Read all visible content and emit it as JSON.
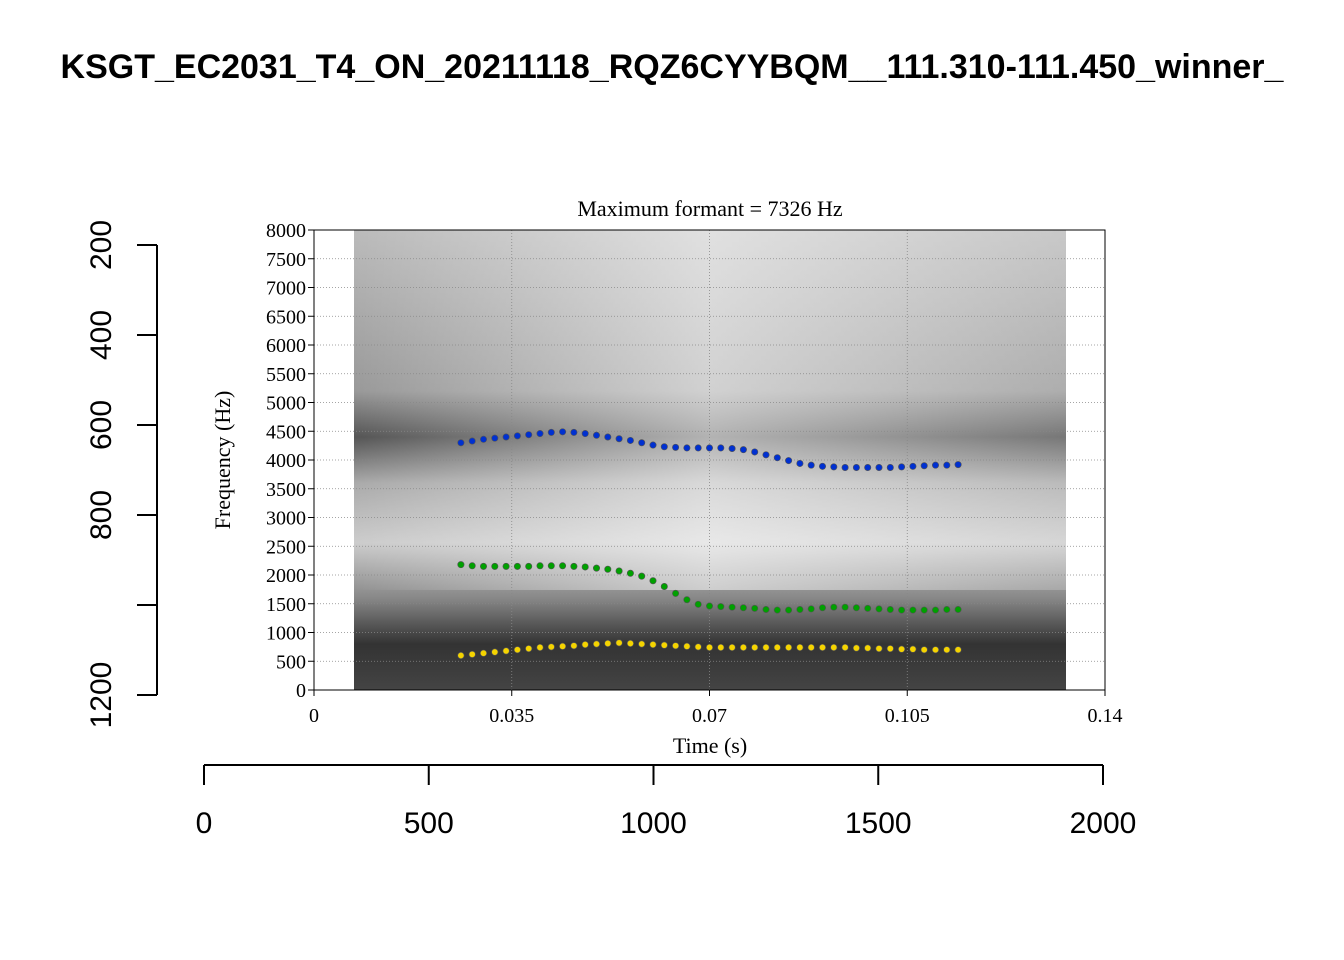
{
  "chart_data": [
    {
      "type": "axes",
      "title": "KSGT_EC2031_T4_ON_20211118_RQZ6CYYBQM__111.310-111.450_winner_",
      "xlim": [
        0,
        2000
      ],
      "xticks": [
        0,
        500,
        1000,
        1500,
        2000
      ],
      "ylim": [
        200,
        1200
      ],
      "y_inverted": true,
      "yticks": [
        200,
        400,
        600,
        800,
        {
          "value": 1000,
          "label": null
        },
        1200
      ]
    },
    {
      "type": "scatter",
      "title": "Maximum formant = 7326 Hz",
      "x_label": "Time (s)",
      "y_label": "Frequency (Hz)",
      "xlim": [
        0,
        0.14
      ],
      "xticks": [
        0,
        0.035,
        0.07,
        0.105,
        0.14
      ],
      "ylim": [
        0,
        8000
      ],
      "yticks": [
        0,
        500,
        1000,
        1500,
        2000,
        2500,
        3000,
        3500,
        4000,
        4500,
        5000,
        5500,
        6000,
        6500,
        7000,
        7500,
        8000
      ],
      "grid": true,
      "x": [
        0.026,
        0.028,
        0.03,
        0.032,
        0.034,
        0.036,
        0.038,
        0.04,
        0.042,
        0.044,
        0.046,
        0.048,
        0.05,
        0.052,
        0.054,
        0.056,
        0.058,
        0.06,
        0.062,
        0.064,
        0.066,
        0.068,
        0.07,
        0.072,
        0.074,
        0.076,
        0.078,
        0.08,
        0.082,
        0.084,
        0.086,
        0.088,
        0.09,
        0.092,
        0.094,
        0.096,
        0.098,
        0.1,
        0.102,
        0.104,
        0.106,
        0.108,
        0.11,
        0.112,
        0.114
      ],
      "series": [
        {
          "color": "#f5d400",
          "values": [
            600,
            620,
            640,
            660,
            680,
            700,
            720,
            740,
            750,
            760,
            770,
            790,
            800,
            810,
            820,
            810,
            800,
            790,
            780,
            770,
            760,
            750,
            740,
            740,
            740,
            740,
            740,
            740,
            740,
            740,
            740,
            740,
            740,
            740,
            740,
            730,
            730,
            720,
            720,
            710,
            710,
            700,
            700,
            700,
            700
          ]
        },
        {
          "color": "#00a000",
          "values": [
            2180,
            2160,
            2150,
            2150,
            2150,
            2150,
            2150,
            2160,
            2160,
            2160,
            2150,
            2140,
            2120,
            2100,
            2070,
            2030,
            1980,
            1900,
            1800,
            1680,
            1570,
            1490,
            1460,
            1450,
            1440,
            1430,
            1420,
            1400,
            1390,
            1390,
            1400,
            1410,
            1430,
            1440,
            1440,
            1430,
            1420,
            1410,
            1400,
            1390,
            1390,
            1390,
            1390,
            1400,
            1400
          ]
        },
        {
          "color": "#0030d0",
          "values": [
            4300,
            4330,
            4360,
            4380,
            4400,
            4420,
            4440,
            4460,
            4480,
            4490,
            4480,
            4460,
            4430,
            4400,
            4370,
            4340,
            4300,
            4260,
            4230,
            4220,
            4210,
            4210,
            4210,
            4210,
            4200,
            4180,
            4140,
            4090,
            4040,
            3990,
            3940,
            3910,
            3890,
            3880,
            3870,
            3870,
            3870,
            3870,
            3870,
            3880,
            3890,
            3900,
            3910,
            3910,
            3920
          ]
        }
      ]
    }
  ]
}
